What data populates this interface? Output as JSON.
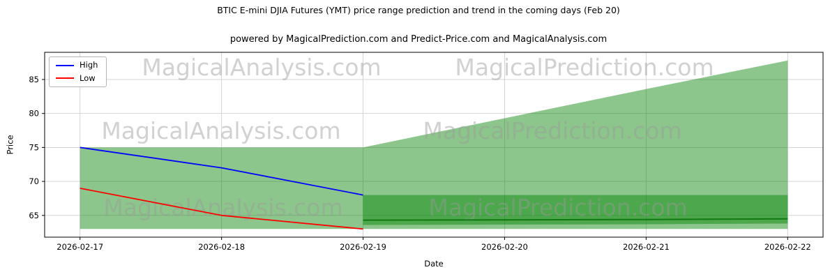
{
  "title": "BTIC E-mini DJIA Futures (YMT) price range prediction and trend in the coming days (Feb 20)",
  "subtitle": "powered by MagicalPrediction.com and Predict-Price.com and MagicalAnalysis.com",
  "watermark": {
    "analysis": "MagicalAnalysis.com",
    "prediction": "MagicalPrediction.com"
  },
  "chart_data": {
    "type": "line",
    "title": "BTIC E-mini DJIA Futures (YMT) price range prediction and trend in the coming days (Feb 20)",
    "xlabel": "Date",
    "ylabel": "Price",
    "x_categories": [
      "2026-02-17",
      "2026-02-18",
      "2026-02-19",
      "2026-02-20",
      "2026-02-21",
      "2026-02-22"
    ],
    "y_ticks": [
      65,
      70,
      75,
      80,
      85
    ],
    "xlim": [
      -0.25,
      5.25
    ],
    "ylim": [
      61.8,
      89.0
    ],
    "grid": true,
    "legend_position": "upper-left",
    "grid_color": "#cfcfcf",
    "series": [
      {
        "name": "High",
        "color": "#0000ff",
        "x": [
          0,
          1,
          2
        ],
        "values": [
          75,
          72,
          68
        ]
      },
      {
        "name": "Low",
        "color": "#ff0000",
        "x": [
          0,
          1,
          2
        ],
        "values": [
          69,
          65,
          63
        ]
      }
    ],
    "bands": [
      {
        "name": "historical-range-band",
        "color": "#008000",
        "opacity": 0.45,
        "x": [
          0,
          1,
          2
        ],
        "lower": [
          63,
          63,
          63
        ],
        "upper": [
          75,
          75,
          75
        ]
      },
      {
        "name": "forecast-fan-band",
        "color": "#008000",
        "opacity": 0.45,
        "x": [
          2,
          3,
          4,
          5
        ],
        "lower": [
          63,
          63,
          63,
          63
        ],
        "upper": [
          75,
          79.3,
          83.6,
          87.8
        ]
      },
      {
        "name": "forecast-low-band",
        "color": "#008000",
        "opacity": 0.45,
        "x": [
          2,
          3,
          4,
          5
        ],
        "lower": [
          63.6,
          63.65,
          63.7,
          63.8
        ],
        "upper": [
          68,
          68,
          68,
          68
        ]
      }
    ],
    "extra_lines": [
      {
        "name": "forecast-low-mid-line",
        "color": "#0f7a0f",
        "width": 2,
        "x": [
          2,
          3,
          4,
          5
        ],
        "values": [
          64.3,
          64.35,
          64.4,
          64.5
        ]
      }
    ]
  }
}
